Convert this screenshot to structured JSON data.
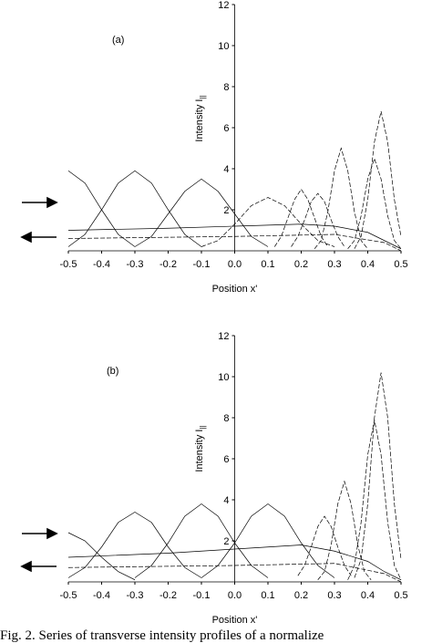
{
  "chart_data": [
    {
      "type": "line",
      "panel_label": "(a)",
      "xlabel": "Position x'",
      "ylabel": "Intensity I",
      "ylabel_sub": "||",
      "xlim": [
        -0.5,
        0.5
      ],
      "ylim": [
        0,
        12
      ],
      "xticks": [
        -0.5,
        -0.4,
        -0.3,
        -0.2,
        -0.1,
        {
          "value": 0,
          "label": "0.0"
        },
        0.1,
        0.2,
        0.3,
        0.4,
        0.5
      ],
      "yticks": [
        2,
        4,
        6,
        8,
        10,
        12
      ],
      "series": [
        {
          "color": "#000000",
          "dashed": false,
          "x": [
            -0.5,
            -0.45,
            -0.4,
            -0.35,
            -0.3
          ],
          "values": [
            3.9,
            3.3,
            2.0,
            0.8,
            0.2
          ]
        },
        {
          "color": "#000000",
          "dashed": false,
          "x": [
            -0.5,
            -0.45,
            -0.4,
            -0.35,
            -0.3,
            -0.25,
            -0.2,
            -0.15,
            -0.1
          ],
          "values": [
            0.2,
            0.8,
            2.0,
            3.3,
            3.9,
            3.3,
            2.0,
            0.8,
            0.2
          ]
        },
        {
          "color": "#000000",
          "dashed": false,
          "x": [
            -0.3,
            -0.25,
            -0.2,
            -0.15,
            -0.1,
            -0.05,
            0,
            0.05,
            0.1
          ],
          "values": [
            0.2,
            0.7,
            1.8,
            2.9,
            3.5,
            2.9,
            1.8,
            0.7,
            0.2
          ]
        },
        {
          "color": "#000000",
          "dashed": true,
          "x": [
            -0.1,
            -0.05,
            0,
            0.05,
            0.1,
            0.15,
            0.2,
            0.25,
            0.3
          ],
          "values": [
            0.2,
            0.5,
            1.3,
            2.2,
            2.6,
            2.2,
            1.3,
            0.5,
            0.2
          ]
        },
        {
          "color": "#000000",
          "dashed": true,
          "x": [
            0.12,
            0.14,
            0.16,
            0.18,
            0.2,
            0.22,
            0.24,
            0.26,
            0.28
          ],
          "values": [
            0.2,
            0.7,
            1.6,
            2.5,
            3.0,
            2.5,
            1.6,
            0.7,
            0.2
          ]
        },
        {
          "color": "#000000",
          "dashed": true,
          "x": [
            0.17,
            0.19,
            0.21,
            0.23,
            0.25,
            0.27,
            0.29,
            0.31,
            0.33
          ],
          "values": [
            0.2,
            0.7,
            1.5,
            2.4,
            2.8,
            2.4,
            1.5,
            0.7,
            0.2
          ]
        },
        {
          "color": "#000000",
          "dashed": true,
          "x": [
            0.24,
            0.26,
            0.28,
            0.3,
            0.32,
            0.34,
            0.36,
            0.38,
            0.4
          ],
          "values": [
            0.1,
            0.5,
            1.9,
            3.9,
            5.0,
            3.9,
            1.9,
            0.5,
            0.1
          ]
        },
        {
          "color": "#000000",
          "dashed": true,
          "x": [
            0.34,
            0.36,
            0.38,
            0.4,
            0.42,
            0.44,
            0.46,
            0.48,
            0.5
          ],
          "values": [
            0.1,
            0.5,
            1.7,
            3.5,
            4.5,
            3.5,
            1.7,
            0.5,
            0.1
          ]
        },
        {
          "color": "#000000",
          "dashed": true,
          "x": [
            0.36,
            0.38,
            0.4,
            0.42,
            0.44,
            0.46,
            0.48,
            0.5
          ],
          "values": [
            0.1,
            0.7,
            2.5,
            5.3,
            6.8,
            5.3,
            2.5,
            0.7
          ]
        },
        {
          "color": "#000000",
          "dashed": false,
          "x": [
            -0.5,
            -0.2,
            0,
            0.2,
            0.3,
            0.4,
            0.45,
            0.5
          ],
          "values": [
            1.0,
            1.1,
            1.2,
            1.3,
            1.2,
            0.9,
            0.5,
            0.1
          ]
        },
        {
          "color": "#000000",
          "dashed": true,
          "x": [
            -0.5,
            0,
            0.3,
            0.45,
            0.5
          ],
          "values": [
            0.6,
            0.7,
            0.8,
            0.4,
            0
          ]
        }
      ]
    },
    {
      "type": "line",
      "panel_label": "(b)",
      "xlabel": "Position x'",
      "ylabel": "Intensity I",
      "ylabel_sub": "||",
      "xlim": [
        -0.5,
        0.5
      ],
      "ylim": [
        0,
        12
      ],
      "xticks": [
        -0.5,
        -0.4,
        -0.3,
        -0.2,
        -0.1,
        {
          "value": 0,
          "label": "0.0"
        },
        0.1,
        0.2,
        0.3,
        0.4,
        0.5
      ],
      "yticks": [
        2,
        4,
        6,
        8,
        10,
        12
      ],
      "series": [
        {
          "color": "#000000",
          "dashed": false,
          "x": [
            -0.5,
            -0.45,
            -0.4,
            -0.35,
            -0.3
          ],
          "values": [
            2.4,
            2.0,
            1.2,
            0.5,
            0.1
          ]
        },
        {
          "color": "#000000",
          "dashed": false,
          "x": [
            -0.5,
            -0.45,
            -0.4,
            -0.35,
            -0.3,
            -0.25,
            -0.2,
            -0.15,
            -0.1
          ],
          "values": [
            0.2,
            0.7,
            1.7,
            2.9,
            3.4,
            2.9,
            1.7,
            0.7,
            0.2
          ]
        },
        {
          "color": "#000000",
          "dashed": false,
          "x": [
            -0.3,
            -0.25,
            -0.2,
            -0.15,
            -0.1,
            -0.05,
            0,
            0.05,
            0.1
          ],
          "values": [
            0.2,
            0.8,
            1.9,
            3.2,
            3.8,
            3.2,
            1.9,
            0.8,
            0.2
          ]
        },
        {
          "color": "#000000",
          "dashed": false,
          "x": [
            -0.1,
            -0.05,
            0,
            0.05,
            0.1,
            0.15,
            0.2,
            0.25,
            0.3
          ],
          "values": [
            0.2,
            0.8,
            1.9,
            3.2,
            3.8,
            3.2,
            1.9,
            0.8,
            0.2
          ]
        },
        {
          "color": "#000000",
          "dashed": true,
          "x": [
            0.19,
            0.21,
            0.23,
            0.25,
            0.27,
            0.29,
            0.31,
            0.33,
            0.35
          ],
          "values": [
            0.3,
            0.8,
            1.7,
            2.7,
            3.2,
            2.7,
            1.7,
            0.8,
            0.3
          ]
        },
        {
          "color": "#000000",
          "dashed": true,
          "x": [
            0.25,
            0.27,
            0.29,
            0.31,
            0.33,
            0.35,
            0.37,
            0.39,
            0.41
          ],
          "values": [
            0.1,
            0.5,
            1.8,
            3.8,
            4.9,
            3.8,
            1.8,
            0.5,
            0.1
          ]
        },
        {
          "color": "#000000",
          "dashed": true,
          "x": [
            0.34,
            0.36,
            0.38,
            0.4,
            0.42,
            0.44,
            0.46,
            0.48,
            0.5
          ],
          "values": [
            0.1,
            0.8,
            2.9,
            6.2,
            7.9,
            6.2,
            2.9,
            0.8,
            0.1
          ]
        },
        {
          "color": "#000000",
          "dashed": true,
          "x": [
            0.36,
            0.38,
            0.4,
            0.42,
            0.44,
            0.46,
            0.48,
            0.5
          ],
          "values": [
            0.2,
            1.1,
            3.8,
            8.0,
            10.2,
            8.0,
            3.8,
            1.1
          ]
        },
        {
          "color": "#000000",
          "dashed": false,
          "x": [
            -0.5,
            -0.2,
            0,
            0.2,
            0.3,
            0.4,
            0.45,
            0.5
          ],
          "values": [
            1.2,
            1.4,
            1.6,
            1.8,
            1.5,
            1.0,
            0.5,
            0.1
          ]
        },
        {
          "color": "#000000",
          "dashed": true,
          "x": [
            -0.5,
            0,
            0.3,
            0.45,
            0.5
          ],
          "values": [
            0.7,
            0.8,
            0.9,
            0.4,
            0
          ]
        }
      ]
    }
  ],
  "caption": "Fig. 2.  Series of transverse intensity profiles of a normalize"
}
